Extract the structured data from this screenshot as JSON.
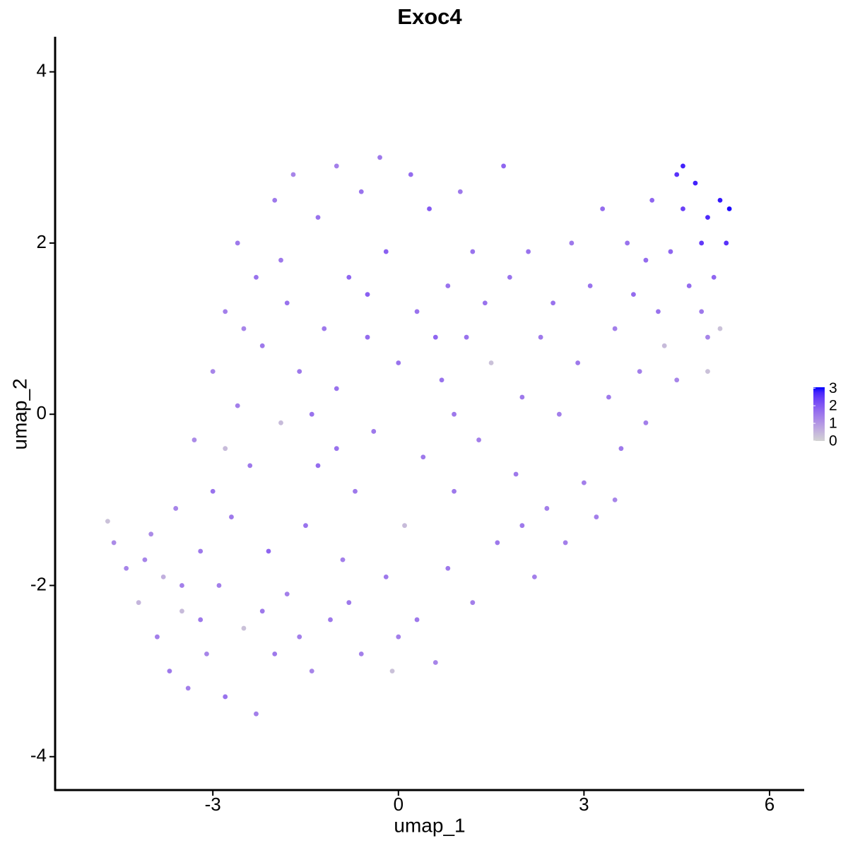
{
  "chart_data": {
    "type": "scatter",
    "title": "Exoc4",
    "x_label": "umap_1",
    "y_label": "umap_2",
    "xlim": [
      -5.55,
      6.56
    ],
    "ylim": [
      -4.39,
      4.41
    ],
    "xticks": [
      -3,
      0,
      3,
      6
    ],
    "yticks": [
      -4,
      -2,
      0,
      2,
      4
    ],
    "color_low": "#d3d3d3",
    "color_high": "#0000ff",
    "clim": [
      0,
      3.05
    ],
    "cticks": [
      0,
      1,
      2,
      3
    ],
    "grid": false,
    "x": [
      -4.7,
      -4.6,
      -4.4,
      -4.2,
      -4.0,
      -3.9,
      -3.8,
      -3.7,
      -3.6,
      -3.5,
      -3.4,
      -3.3,
      -3.2,
      -3.1,
      -3.0,
      -3.0,
      -2.9,
      -2.8,
      -2.8,
      -2.7,
      -2.6,
      -2.6,
      -2.5,
      -2.4,
      -2.3,
      -2.3,
      -2.2,
      -2.1,
      -2.0,
      -2.0,
      -1.9,
      -1.8,
      -1.8,
      -1.7,
      -1.6,
      -1.5,
      -1.4,
      -1.3,
      -1.3,
      -1.2,
      -1.1,
      -1.0,
      -1.0,
      -0.9,
      -0.8,
      -0.7,
      -0.6,
      -0.6,
      -0.5,
      -0.4,
      -0.3,
      -0.2,
      -0.2,
      -0.1,
      0.0,
      0.1,
      0.2,
      0.3,
      0.3,
      0.4,
      0.5,
      0.6,
      0.7,
      0.8,
      0.8,
      0.9,
      1.0,
      1.1,
      1.2,
      1.3,
      1.4,
      1.5,
      1.6,
      1.7,
      1.8,
      1.9,
      2.0,
      2.1,
      2.2,
      2.3,
      2.4,
      2.5,
      2.6,
      2.7,
      2.8,
      2.9,
      3.0,
      3.1,
      3.2,
      3.3,
      3.4,
      3.5,
      3.6,
      3.7,
      3.8,
      3.9,
      4.0,
      4.1,
      4.2,
      4.3,
      4.4,
      4.5,
      4.5,
      4.6,
      4.7,
      4.8,
      4.9,
      5.0,
      5.0,
      5.1,
      5.2,
      5.3,
      5.35,
      5.2,
      5.0,
      4.9,
      -3.5,
      -2.2,
      -1.6,
      -0.8,
      0.0,
      -2.8,
      -1.0,
      0.6,
      -0.5,
      -1.9,
      1.2,
      0.9,
      -1.4,
      -2.5,
      -3.2,
      -4.1,
      2.0,
      3.5,
      4.0,
      4.6
    ],
    "y": [
      -1.25,
      -1.5,
      -1.8,
      -2.2,
      -1.4,
      -2.6,
      -1.9,
      -3.0,
      -1.1,
      -2.3,
      -3.2,
      -0.3,
      -1.6,
      -2.8,
      0.5,
      -0.9,
      -2.0,
      1.2,
      -3.3,
      -1.2,
      2.0,
      0.1,
      -2.5,
      -0.6,
      1.6,
      -3.5,
      0.8,
      -1.6,
      2.5,
      -2.8,
      -0.1,
      1.3,
      -2.1,
      2.8,
      0.5,
      -1.3,
      -3.0,
      2.3,
      -0.6,
      1.0,
      -2.4,
      2.9,
      0.3,
      -1.7,
      1.6,
      -0.9,
      2.6,
      -2.8,
      0.9,
      -0.2,
      3.0,
      1.9,
      -1.9,
      -3.0,
      0.6,
      -1.3,
      2.8,
      1.2,
      -2.4,
      -0.5,
      2.4,
      -2.9,
      0.4,
      1.5,
      -1.8,
      -0.9,
      2.6,
      0.9,
      -2.2,
      -0.3,
      1.3,
      0.6,
      -1.5,
      2.9,
      1.6,
      -0.7,
      0.2,
      1.9,
      -1.9,
      0.9,
      -1.1,
      1.3,
      0.0,
      -1.5,
      2.0,
      0.6,
      -0.8,
      1.5,
      -1.2,
      2.4,
      0.2,
      1.0,
      -0.4,
      2.0,
      1.4,
      0.5,
      -0.1,
      2.5,
      1.2,
      0.8,
      1.9,
      2.8,
      0.4,
      2.4,
      1.5,
      2.7,
      2.0,
      0.9,
      2.3,
      1.6,
      2.5,
      2.0,
      2.4,
      1.0,
      0.5,
      1.2,
      -2.0,
      -2.3,
      -2.6,
      -2.2,
      -2.6,
      -0.4,
      -0.4,
      0.9,
      1.4,
      1.8,
      1.9,
      0.0,
      0.0,
      1.0,
      -2.4,
      -1.7,
      -1.3,
      -1.0,
      1.8,
      2.9
    ],
    "values": [
      0.3,
      1.2,
      1.3,
      0.5,
      1.2,
      1.4,
      0.6,
      1.5,
      1.3,
      0.4,
      1.4,
      1.2,
      1.5,
      1.3,
      1.3,
      1.6,
      1.4,
      1.4,
      1.6,
      1.5,
      1.5,
      1.4,
      0.3,
      1.5,
      1.6,
      1.4,
      1.5,
      1.8,
      1.5,
      1.5,
      0.4,
      1.6,
      1.4,
      1.3,
      1.5,
      1.6,
      1.3,
      1.6,
      1.7,
      1.5,
      1.5,
      1.4,
      1.6,
      1.4,
      1.8,
      1.5,
      1.6,
      1.4,
      1.7,
      1.5,
      1.5,
      1.9,
      1.5,
      0.3,
      1.6,
      0.4,
      1.7,
      1.6,
      1.5,
      1.5,
      2.0,
      1.3,
      1.6,
      1.6,
      1.5,
      1.5,
      1.5,
      1.6,
      1.4,
      1.4,
      1.6,
      0.3,
      1.5,
      1.8,
      1.6,
      1.5,
      1.5,
      1.6,
      1.4,
      1.5,
      1.4,
      1.6,
      1.4,
      1.4,
      1.5,
      1.5,
      1.4,
      1.6,
      1.4,
      1.7,
      1.5,
      1.4,
      1.5,
      1.6,
      1.7,
      1.4,
      1.4,
      1.8,
      1.6,
      0.4,
      1.8,
      2.6,
      1.3,
      2.4,
      1.7,
      2.8,
      2.5,
      1.3,
      2.7,
      1.8,
      2.9,
      2.6,
      3.0,
      0.3,
      0.3,
      1.5,
      1.4,
      1.5,
      1.4,
      1.5,
      1.4,
      0.4,
      1.6,
      1.8,
      1.9,
      1.5,
      1.6,
      1.5,
      1.6,
      1.3,
      1.5,
      1.3,
      1.5,
      1.3,
      1.7,
      2.8
    ]
  }
}
